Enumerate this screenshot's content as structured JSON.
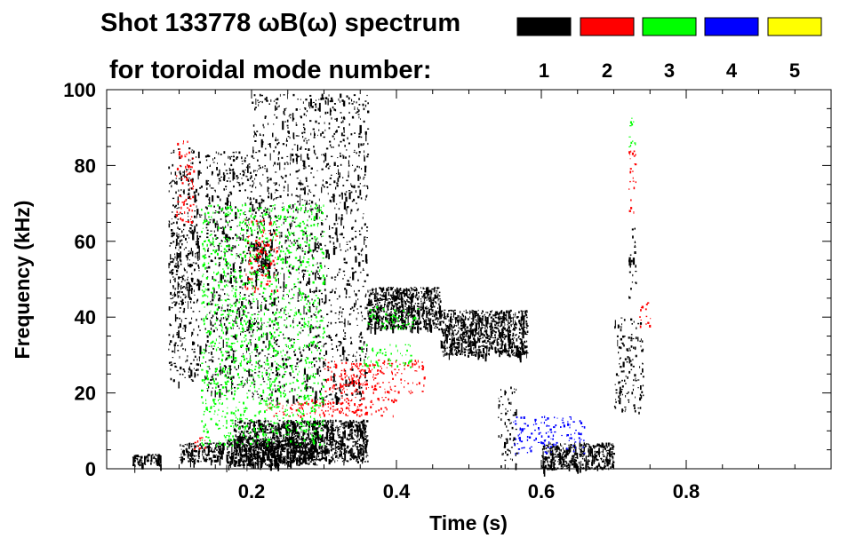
{
  "chart_data": {
    "type": "spectrogram",
    "title_line1": "Shot 133778 ωB(ω) spectrum",
    "title_line2": "for toroidal mode number:",
    "xlabel": "Time (s)",
    "ylabel": "Frequency (kHz)",
    "xlim": [
      0.0,
      1.0
    ],
    "ylim": [
      0,
      100
    ],
    "x_ticks": [
      {
        "value": 0.2,
        "label": "0.2"
      },
      {
        "value": 0.4,
        "label": "0.4"
      },
      {
        "value": 0.6,
        "label": "0.6"
      },
      {
        "value": 0.8,
        "label": "0.8"
      }
    ],
    "y_ticks": [
      {
        "value": 0,
        "label": "0"
      },
      {
        "value": 20,
        "label": "20"
      },
      {
        "value": 40,
        "label": "40"
      },
      {
        "value": 60,
        "label": "60"
      },
      {
        "value": 80,
        "label": "80"
      },
      {
        "value": 100,
        "label": "100"
      }
    ],
    "legend": [
      {
        "n": "1",
        "color": "#000000"
      },
      {
        "n": "2",
        "color": "#ff0000"
      },
      {
        "n": "3",
        "color": "#00ff00"
      },
      {
        "n": "4",
        "color": "#0000ff"
      },
      {
        "n": "5",
        "color": "#ffff00"
      }
    ],
    "patches": [
      {
        "mode": "1",
        "t0": 0.09,
        "t1": 0.125,
        "f0": 44,
        "f1": 64
      },
      {
        "mode": "1",
        "t0": 0.085,
        "t1": 0.13,
        "f0": 23,
        "f1": 85
      },
      {
        "mode": "1",
        "t0": 0.135,
        "t1": 0.2,
        "f0": 20,
        "f1": 84
      },
      {
        "mode": "1",
        "t0": 0.2,
        "t1": 0.36,
        "f0": 18,
        "f1": 99
      },
      {
        "mode": "1",
        "t0": 0.175,
        "t1": 0.36,
        "f0": 2,
        "f1": 13
      },
      {
        "mode": "1",
        "t0": 0.165,
        "t1": 0.29,
        "f0": 1,
        "f1": 8
      },
      {
        "mode": "1",
        "t0": 0.205,
        "t1": 0.225,
        "f0": 52,
        "f1": 60
      },
      {
        "mode": "1",
        "t0": 0.035,
        "t1": 0.075,
        "f0": 1,
        "f1": 4
      },
      {
        "mode": "1",
        "t0": 0.1,
        "t1": 0.16,
        "f0": 2,
        "f1": 7
      },
      {
        "mode": "1",
        "t0": 0.54,
        "t1": 0.565,
        "f0": 0,
        "f1": 22
      },
      {
        "mode": "1",
        "t0": 0.6,
        "t1": 0.7,
        "f0": 0,
        "f1": 7
      },
      {
        "mode": "1",
        "t0": 0.72,
        "t1": 0.73,
        "f0": 45,
        "f1": 64
      },
      {
        "mode": "1",
        "t0": 0.7,
        "t1": 0.74,
        "f0": 15,
        "f1": 40
      },
      {
        "mode": "1",
        "t0": 0.36,
        "t1": 0.46,
        "f0": 37,
        "f1": 48
      },
      {
        "mode": "1",
        "t0": 0.46,
        "t1": 0.58,
        "f0": 30,
        "f1": 42
      },
      {
        "mode": "2",
        "t0": 0.3,
        "t1": 0.44,
        "f0": 20,
        "f1": 29
      },
      {
        "mode": "2",
        "t0": 0.32,
        "t1": 0.38,
        "f0": 22,
        "f1": 28
      },
      {
        "mode": "2",
        "t0": 0.22,
        "t1": 0.36,
        "f0": 14,
        "f1": 18
      },
      {
        "mode": "2",
        "t0": 0.28,
        "t1": 0.4,
        "f0": 14,
        "f1": 19
      },
      {
        "mode": "2",
        "t0": 0.19,
        "t1": 0.235,
        "f0": 47,
        "f1": 66
      },
      {
        "mode": "2",
        "t0": 0.095,
        "t1": 0.12,
        "f0": 65,
        "f1": 87
      },
      {
        "mode": "2",
        "t0": 0.72,
        "t1": 0.73,
        "f0": 67,
        "f1": 84
      },
      {
        "mode": "2",
        "t0": 0.735,
        "t1": 0.75,
        "f0": 37,
        "f1": 44
      },
      {
        "mode": "2",
        "t0": 0.12,
        "t1": 0.14,
        "f0": 5,
        "f1": 9
      },
      {
        "mode": "3",
        "t0": 0.36,
        "t1": 0.43,
        "f0": 37,
        "f1": 43
      },
      {
        "mode": "3",
        "t0": 0.35,
        "t1": 0.42,
        "f0": 27,
        "f1": 33
      },
      {
        "mode": "3",
        "t0": 0.72,
        "t1": 0.73,
        "f0": 84,
        "f1": 93
      },
      {
        "mode": "3",
        "t0": 0.13,
        "t1": 0.3,
        "f0": 6,
        "f1": 70
      },
      {
        "mode": "4",
        "t0": 0.56,
        "t1": 0.66,
        "f0": 4,
        "f1": 14
      }
    ]
  }
}
